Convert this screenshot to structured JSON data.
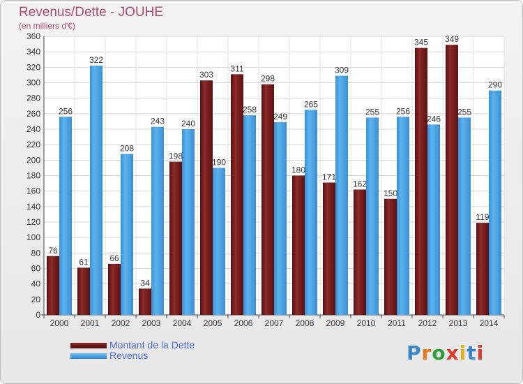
{
  "header": {
    "title": "Revenus/Dette - JOUHE",
    "subtitle": "(en milliers d'€)"
  },
  "legend": {
    "items": [
      {
        "label": "Montant de la Dette",
        "color": "#7a1c1c"
      },
      {
        "label": "Revenus",
        "color": "#4aa3e6"
      }
    ]
  },
  "logo": {
    "text": "Proxiti",
    "colors": [
      "#3a86c8",
      "#e07b1a",
      "#2e9e3a",
      "#d93a2b",
      "#e0b21a",
      "#3a86c8",
      "#d93a2b"
    ]
  },
  "chart_data": {
    "type": "bar",
    "categories": [
      "2000",
      "2001",
      "2002",
      "2003",
      "2004",
      "2005",
      "2006",
      "2007",
      "2008",
      "2009",
      "2010",
      "2011",
      "2012",
      "2013",
      "2014"
    ],
    "series": [
      {
        "name": "Montant de la Dette",
        "color": "#7a1c1c",
        "values": [
          76,
          61,
          66,
          34,
          198,
          303,
          311,
          298,
          180,
          171,
          162,
          150,
          345,
          349,
          119
        ]
      },
      {
        "name": "Revenus",
        "color": "#4aa3e6",
        "values": [
          256,
          322,
          208,
          243,
          240,
          190,
          258,
          249,
          265,
          309,
          255,
          256,
          246,
          255,
          290
        ]
      }
    ],
    "ylim": [
      0,
      360
    ],
    "yticks": [
      0,
      20,
      40,
      60,
      80,
      100,
      120,
      140,
      160,
      180,
      200,
      220,
      240,
      260,
      280,
      300,
      320,
      340,
      360
    ],
    "grid": true,
    "data_labels": true,
    "legend_position": "bottom-left"
  }
}
